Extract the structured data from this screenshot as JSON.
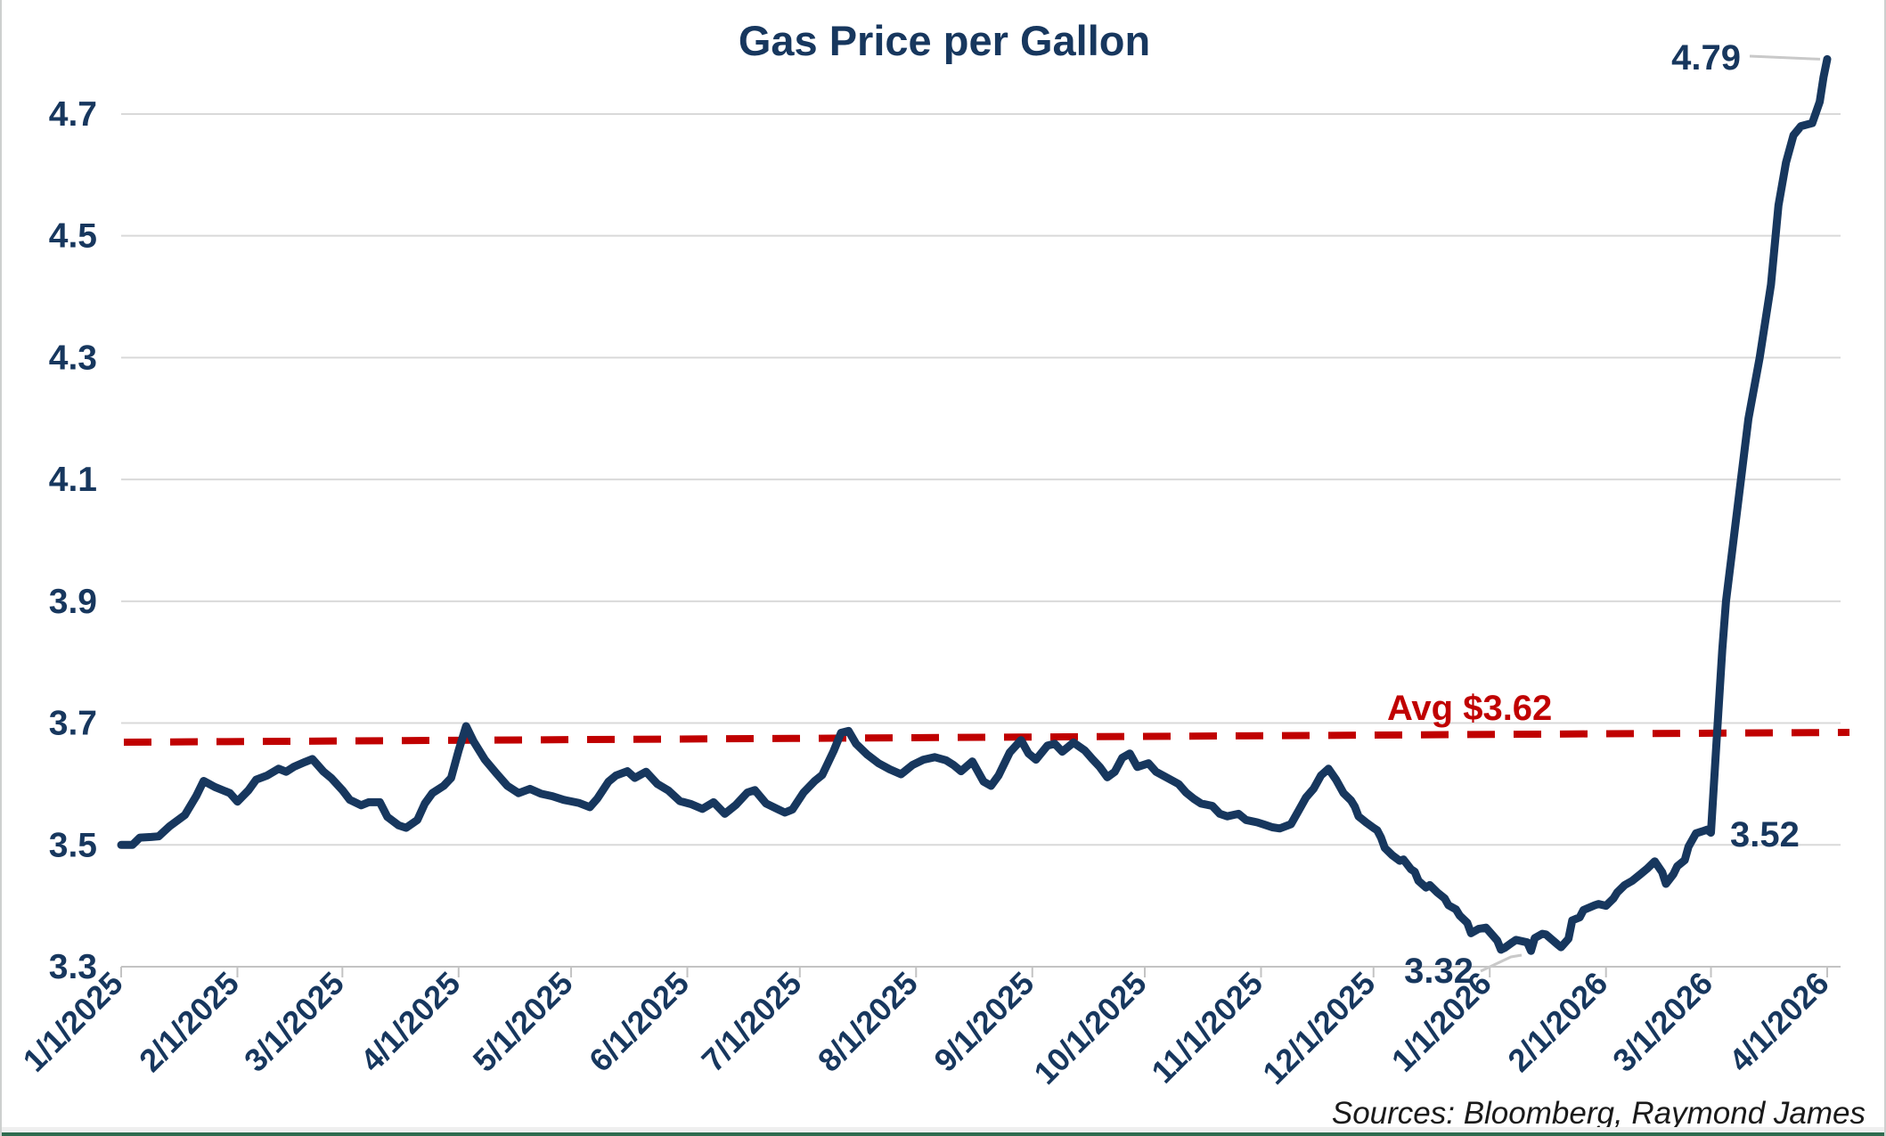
{
  "window": {
    "title": "Gas Price per Gallon"
  },
  "source_note": "Sources: Bloomberg, Raymond James",
  "colors": {
    "line": "#17375E",
    "text_navy": "#17375E",
    "avg_red": "#C00000",
    "grid": "#D9D9D9",
    "axis": "#C3C3C3",
    "leader": "#C9C9C9",
    "source_text": "#1A1A1A",
    "edge_green": "#2E6B4F"
  },
  "chart_data": {
    "type": "line",
    "title": "Gas Price per Gallon",
    "xlabel": "",
    "ylabel": "",
    "grid": "horizontal-only",
    "legend": "none",
    "ylim": [
      3.3,
      4.8
    ],
    "y_ticks": [
      3.3,
      3.5,
      3.7,
      3.9,
      4.1,
      4.3,
      4.5,
      4.7
    ],
    "x_tick_labels": [
      "1/1/2025",
      "2/1/2025",
      "3/1/2025",
      "4/1/2025",
      "5/1/2025",
      "6/1/2025",
      "7/1/2025",
      "8/1/2025",
      "9/1/2025",
      "10/1/2025",
      "11/1/2025",
      "12/1/2025",
      "1/1/2026",
      "2/1/2026",
      "3/1/2026",
      "4/1/2026"
    ],
    "avg_line": {
      "label": "Avg $3.62",
      "value": 3.62,
      "style": "dashed",
      "color": "#C00000"
    },
    "annotations": {
      "max_label": "4.79",
      "pre_surge_label": "3.52",
      "min_label": "3.32"
    },
    "series": [
      {
        "name": "gas-price-per-gallon",
        "color": "#17375E",
        "points": [
          [
            "2025-01-01",
            3.5
          ],
          [
            "2025-01-04",
            3.5
          ],
          [
            "2025-01-06",
            3.512
          ],
          [
            "2025-01-09",
            3.513
          ],
          [
            "2025-01-11",
            3.514
          ],
          [
            "2025-01-14",
            3.531
          ],
          [
            "2025-01-18",
            3.549
          ],
          [
            "2025-01-21",
            3.58
          ],
          [
            "2025-01-23",
            3.605
          ],
          [
            "2025-01-26",
            3.595
          ],
          [
            "2025-01-30",
            3.585
          ],
          [
            "2025-02-01",
            3.571
          ],
          [
            "2025-02-04",
            3.59
          ],
          [
            "2025-02-06",
            3.607
          ],
          [
            "2025-02-09",
            3.614
          ],
          [
            "2025-02-12",
            3.625
          ],
          [
            "2025-02-14",
            3.62
          ],
          [
            "2025-02-16",
            3.628
          ],
          [
            "2025-02-19",
            3.636
          ],
          [
            "2025-02-21",
            3.641
          ],
          [
            "2025-02-24",
            3.62
          ],
          [
            "2025-02-26",
            3.61
          ],
          [
            "2025-03-01",
            3.59
          ],
          [
            "2025-03-03",
            3.574
          ],
          [
            "2025-03-06",
            3.565
          ],
          [
            "2025-03-08",
            3.57
          ],
          [
            "2025-03-11",
            3.57
          ],
          [
            "2025-03-13",
            3.546
          ],
          [
            "2025-03-16",
            3.532
          ],
          [
            "2025-03-18",
            3.528
          ],
          [
            "2025-03-21",
            3.541
          ],
          [
            "2025-03-23",
            3.568
          ],
          [
            "2025-03-25",
            3.585
          ],
          [
            "2025-03-28",
            3.597
          ],
          [
            "2025-03-30",
            3.61
          ],
          [
            "2025-04-01",
            3.655
          ],
          [
            "2025-04-03",
            3.695
          ],
          [
            "2025-04-05",
            3.67
          ],
          [
            "2025-04-08",
            3.64
          ],
          [
            "2025-04-11",
            3.618
          ],
          [
            "2025-04-14",
            3.597
          ],
          [
            "2025-04-17",
            3.585
          ],
          [
            "2025-04-20",
            3.592
          ],
          [
            "2025-04-23",
            3.584
          ],
          [
            "2025-04-26",
            3.58
          ],
          [
            "2025-04-29",
            3.574
          ],
          [
            "2025-05-03",
            3.569
          ],
          [
            "2025-05-06",
            3.562
          ],
          [
            "2025-05-08",
            3.576
          ],
          [
            "2025-05-11",
            3.604
          ],
          [
            "2025-05-13",
            3.614
          ],
          [
            "2025-05-16",
            3.621
          ],
          [
            "2025-05-18",
            3.61
          ],
          [
            "2025-05-21",
            3.62
          ],
          [
            "2025-05-24",
            3.6
          ],
          [
            "2025-05-27",
            3.589
          ],
          [
            "2025-05-30",
            3.572
          ],
          [
            "2025-06-02",
            3.567
          ],
          [
            "2025-06-05",
            3.559
          ],
          [
            "2025-06-08",
            3.57
          ],
          [
            "2025-06-11",
            3.551
          ],
          [
            "2025-06-14",
            3.566
          ],
          [
            "2025-06-17",
            3.586
          ],
          [
            "2025-06-19",
            3.59
          ],
          [
            "2025-06-22",
            3.568
          ],
          [
            "2025-06-25",
            3.559
          ],
          [
            "2025-06-27",
            3.553
          ],
          [
            "2025-06-29",
            3.558
          ],
          [
            "2025-07-02",
            3.586
          ],
          [
            "2025-07-05",
            3.605
          ],
          [
            "2025-07-07",
            3.615
          ],
          [
            "2025-07-10",
            3.654
          ],
          [
            "2025-07-12",
            3.684
          ],
          [
            "2025-07-14",
            3.687
          ],
          [
            "2025-07-16",
            3.666
          ],
          [
            "2025-07-19",
            3.648
          ],
          [
            "2025-07-22",
            3.634
          ],
          [
            "2025-07-25",
            3.624
          ],
          [
            "2025-07-28",
            3.616
          ],
          [
            "2025-07-31",
            3.631
          ],
          [
            "2025-08-03",
            3.64
          ],
          [
            "2025-08-06",
            3.644
          ],
          [
            "2025-08-09",
            3.639
          ],
          [
            "2025-08-11",
            3.631
          ],
          [
            "2025-08-13",
            3.621
          ],
          [
            "2025-08-16",
            3.637
          ],
          [
            "2025-08-19",
            3.604
          ],
          [
            "2025-08-21",
            3.597
          ],
          [
            "2025-08-23",
            3.614
          ],
          [
            "2025-08-26",
            3.652
          ],
          [
            "2025-08-29",
            3.672
          ],
          [
            "2025-08-31",
            3.65
          ],
          [
            "2025-09-02",
            3.64
          ],
          [
            "2025-09-05",
            3.663
          ],
          [
            "2025-09-07",
            3.666
          ],
          [
            "2025-09-09",
            3.653
          ],
          [
            "2025-09-12",
            3.668
          ],
          [
            "2025-09-15",
            3.655
          ],
          [
            "2025-09-17",
            3.641
          ],
          [
            "2025-09-19",
            3.628
          ],
          [
            "2025-09-21",
            3.611
          ],
          [
            "2025-09-23",
            3.62
          ],
          [
            "2025-09-25",
            3.643
          ],
          [
            "2025-09-27",
            3.65
          ],
          [
            "2025-09-29",
            3.628
          ],
          [
            "2025-10-02",
            3.634
          ],
          [
            "2025-10-04",
            3.62
          ],
          [
            "2025-10-07",
            3.61
          ],
          [
            "2025-10-10",
            3.6
          ],
          [
            "2025-10-12",
            3.586
          ],
          [
            "2025-10-14",
            3.576
          ],
          [
            "2025-10-16",
            3.568
          ],
          [
            "2025-10-19",
            3.564
          ],
          [
            "2025-10-21",
            3.551
          ],
          [
            "2025-10-23",
            3.547
          ],
          [
            "2025-10-26",
            3.551
          ],
          [
            "2025-10-28",
            3.541
          ],
          [
            "2025-10-31",
            3.537
          ],
          [
            "2025-11-02",
            3.533
          ],
          [
            "2025-11-04",
            3.529
          ],
          [
            "2025-11-06",
            3.527
          ],
          [
            "2025-11-09",
            3.534
          ],
          [
            "2025-11-11",
            3.556
          ],
          [
            "2025-11-13",
            3.578
          ],
          [
            "2025-11-15",
            3.592
          ],
          [
            "2025-11-17",
            3.614
          ],
          [
            "2025-11-19",
            3.625
          ],
          [
            "2025-11-21",
            3.607
          ],
          [
            "2025-11-23",
            3.585
          ],
          [
            "2025-11-25",
            3.573
          ],
          [
            "2025-11-26",
            3.563
          ],
          [
            "2025-11-27",
            3.547
          ],
          [
            "2025-11-29",
            3.537
          ],
          [
            "2025-12-01",
            3.528
          ],
          [
            "2025-12-02",
            3.524
          ],
          [
            "2025-12-03",
            3.512
          ],
          [
            "2025-12-04",
            3.495
          ],
          [
            "2025-12-06",
            3.483
          ],
          [
            "2025-12-08",
            3.474
          ],
          [
            "2025-12-09",
            3.476
          ],
          [
            "2025-12-11",
            3.46
          ],
          [
            "2025-12-12",
            3.456
          ],
          [
            "2025-12-13",
            3.441
          ],
          [
            "2025-12-15",
            3.43
          ],
          [
            "2025-12-16",
            3.434
          ],
          [
            "2025-12-18",
            3.422
          ],
          [
            "2025-12-20",
            3.412
          ],
          [
            "2025-12-21",
            3.401
          ],
          [
            "2025-12-23",
            3.394
          ],
          [
            "2025-12-24",
            3.384
          ],
          [
            "2025-12-26",
            3.372
          ],
          [
            "2025-12-27",
            3.355
          ],
          [
            "2025-12-29",
            3.362
          ],
          [
            "2025-12-31",
            3.364
          ],
          [
            "2026-01-01",
            3.357
          ],
          [
            "2026-01-03",
            3.343
          ],
          [
            "2026-01-04",
            3.328
          ],
          [
            "2026-01-05",
            3.331
          ],
          [
            "2026-01-07",
            3.34
          ],
          [
            "2026-01-08",
            3.344
          ],
          [
            "2026-01-11",
            3.34
          ],
          [
            "2026-01-12",
            3.326
          ],
          [
            "2026-01-13",
            3.347
          ],
          [
            "2026-01-15",
            3.354
          ],
          [
            "2026-01-16",
            3.353
          ],
          [
            "2026-01-19",
            3.337
          ],
          [
            "2026-01-20",
            3.332
          ],
          [
            "2026-01-22",
            3.346
          ],
          [
            "2026-01-23",
            3.376
          ],
          [
            "2026-01-25",
            3.381
          ],
          [
            "2026-01-26",
            3.393
          ],
          [
            "2026-01-29",
            3.401
          ],
          [
            "2026-01-30",
            3.403
          ],
          [
            "2026-02-01",
            3.4
          ],
          [
            "2026-02-03",
            3.412
          ],
          [
            "2026-02-04",
            3.422
          ],
          [
            "2026-02-06",
            3.434
          ],
          [
            "2026-02-08",
            3.441
          ],
          [
            "2026-02-10",
            3.451
          ],
          [
            "2026-02-12",
            3.461
          ],
          [
            "2026-02-14",
            3.473
          ],
          [
            "2026-02-16",
            3.455
          ],
          [
            "2026-02-17",
            3.436
          ],
          [
            "2026-02-19",
            3.452
          ],
          [
            "2026-02-20",
            3.465
          ],
          [
            "2026-02-22",
            3.475
          ],
          [
            "2026-02-23",
            3.497
          ],
          [
            "2026-02-25",
            3.519
          ],
          [
            "2026-02-27",
            3.523
          ],
          [
            "2026-02-28",
            3.525
          ],
          [
            "2026-03-01",
            3.52
          ],
          [
            "2026-03-02",
            3.62
          ],
          [
            "2026-03-03",
            3.72
          ],
          [
            "2026-03-04",
            3.82
          ],
          [
            "2026-03-05",
            3.9
          ],
          [
            "2026-03-07",
            4.0
          ],
          [
            "2026-03-09",
            4.1
          ],
          [
            "2026-03-11",
            4.2
          ],
          [
            "2026-03-14",
            4.3
          ],
          [
            "2026-03-17",
            4.42
          ],
          [
            "2026-03-19",
            4.55
          ],
          [
            "2026-03-21",
            4.62
          ],
          [
            "2026-03-23",
            4.665
          ],
          [
            "2026-03-25",
            4.68
          ],
          [
            "2026-03-28",
            4.685
          ],
          [
            "2026-03-30",
            4.72
          ],
          [
            "2026-03-31",
            4.76
          ],
          [
            "2026-04-01",
            4.79
          ]
        ]
      }
    ]
  }
}
